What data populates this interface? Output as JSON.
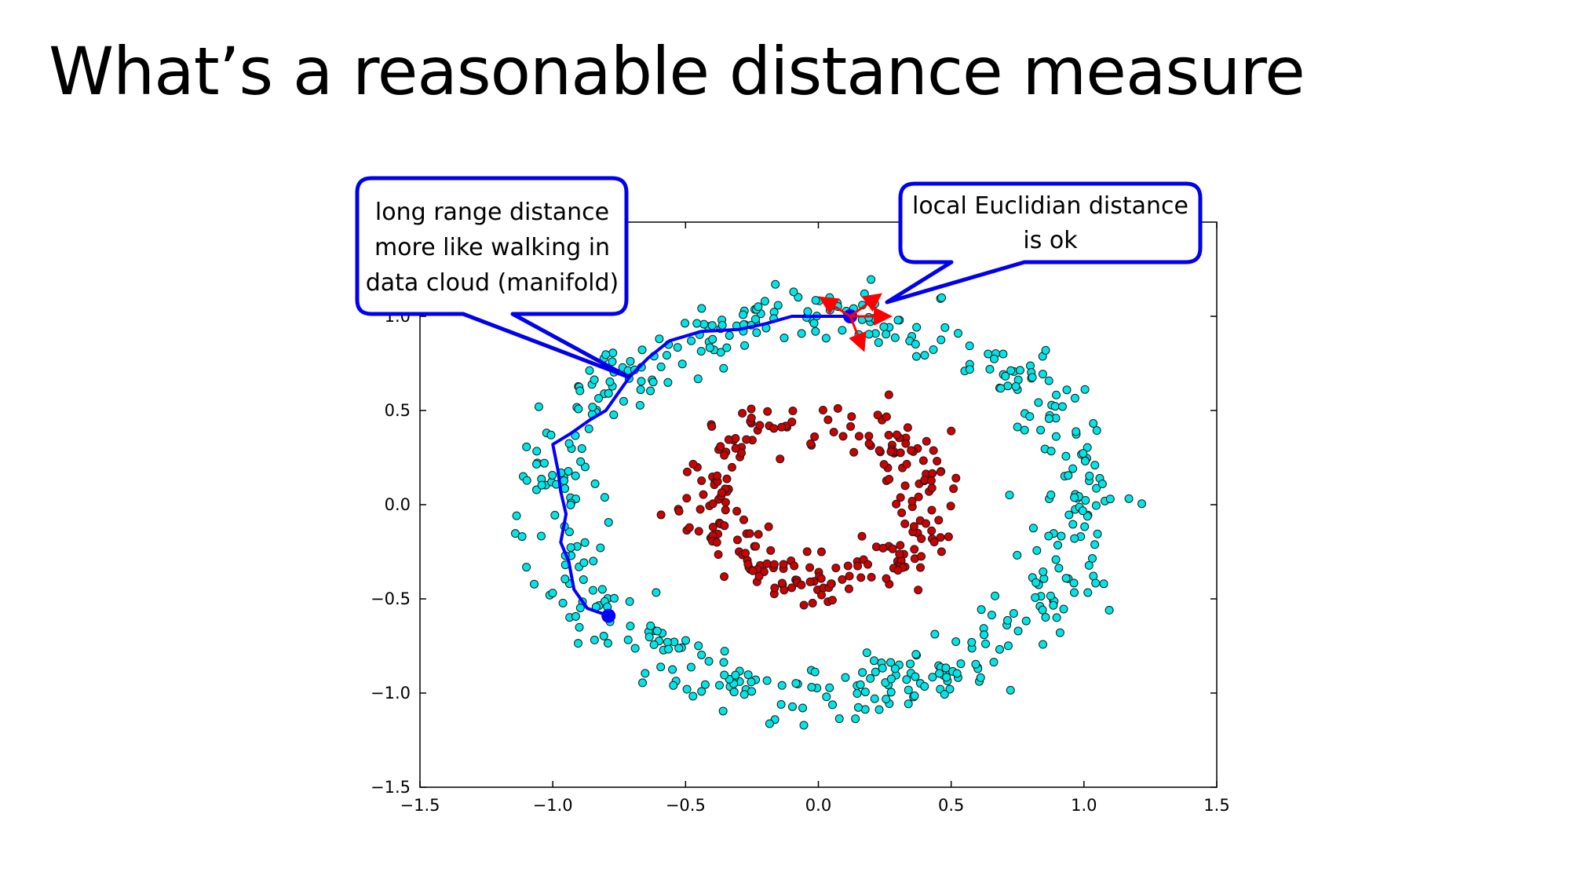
{
  "slide": {
    "title": "What’s a reasonable distance measure"
  },
  "chart_data": {
    "type": "scatter",
    "title": "",
    "xlabel": "",
    "ylabel": "",
    "xlim": [
      -1.5,
      1.5
    ],
    "ylim": [
      -1.5,
      1.5
    ],
    "x_ticks": [
      -1.5,
      -1.0,
      -0.5,
      0.0,
      0.5,
      1.0,
      1.5
    ],
    "y_ticks": [
      -1.5,
      -1.0,
      -0.5,
      0.0,
      0.5,
      1.0
    ],
    "x_tick_labels": [
      "−1.5",
      "−1.0",
      "−0.5",
      "0.0",
      "0.5",
      "1.0",
      "1.5"
    ],
    "y_tick_labels": [
      "−1.5",
      "−1.0",
      "−0.5",
      "0.0",
      "0.5",
      "1.0"
    ],
    "grid": false,
    "series": [
      {
        "color": "#00e5e5",
        "shape": "ring",
        "radius": 1.0,
        "noise": 0.08,
        "count": 500
      },
      {
        "color": "#cc0000",
        "shape": "ring",
        "radius": 0.42,
        "noise": 0.07,
        "count": 250
      }
    ],
    "extra_points": [
      {
        "x": 0.12,
        "y": 1.0,
        "color": "#0000ff"
      },
      {
        "x": -0.79,
        "y": -0.59,
        "color": "#0000ff"
      }
    ],
    "manifold_path": [
      [
        -0.79,
        -0.59
      ],
      [
        -0.87,
        -0.55
      ],
      [
        -0.92,
        -0.45
      ],
      [
        -0.94,
        -0.3
      ],
      [
        -0.97,
        -0.2
      ],
      [
        -0.95,
        -0.05
      ],
      [
        -0.97,
        0.07
      ],
      [
        -0.98,
        0.18
      ],
      [
        -1.0,
        0.32
      ],
      [
        -0.93,
        0.38
      ],
      [
        -0.86,
        0.45
      ],
      [
        -0.8,
        0.5
      ],
      [
        -0.76,
        0.58
      ],
      [
        -0.71,
        0.68
      ],
      [
        -0.64,
        0.78
      ],
      [
        -0.56,
        0.87
      ],
      [
        -0.44,
        0.92
      ],
      [
        -0.3,
        0.93
      ],
      [
        -0.2,
        0.96
      ],
      [
        -0.1,
        1.0
      ],
      [
        0.0,
        1.0
      ],
      [
        0.12,
        1.0
      ]
    ],
    "callouts": [
      {
        "lines": [
          "long range distance",
          "more like walking in",
          "data cloud (manifold)"
        ]
      },
      {
        "lines": [
          "local Euclidian distance",
          "is ok"
        ]
      }
    ],
    "colors": {
      "axis": "#000000",
      "callout_border": "#0000ee",
      "path": "#0000ff",
      "arrows": "#ff0000"
    }
  }
}
